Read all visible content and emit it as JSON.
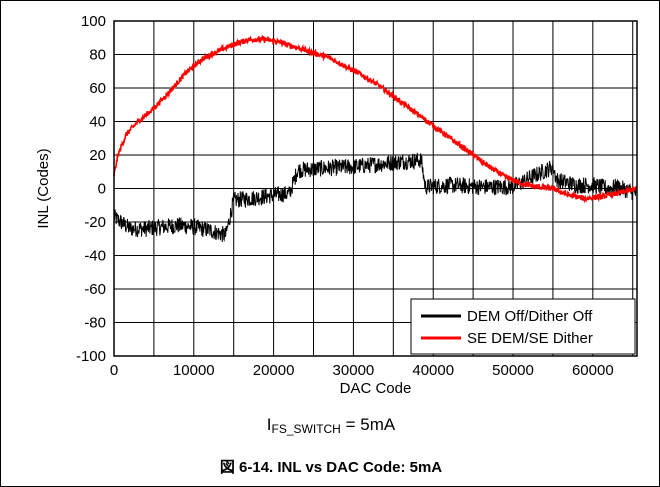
{
  "chart_data": {
    "type": "line",
    "xlabel": "DAC Code",
    "ylabel": "INL (Codes)",
    "xlim": [
      0,
      65535
    ],
    "ylim": [
      -100,
      100
    ],
    "xticks": [
      0,
      10000,
      20000,
      30000,
      40000,
      50000,
      60000
    ],
    "yticks": [
      100,
      80,
      60,
      40,
      20,
      0,
      -20,
      -40,
      -60,
      -80,
      -100
    ],
    "grid": true,
    "legend_position": "bottom-right",
    "series": [
      {
        "name": "DEM Off/Dither Off",
        "color": "#000000",
        "x": [
          0,
          2000,
          4000,
          6000,
          8000,
          10000,
          12000,
          14000,
          15000,
          17000,
          20000,
          22000,
          23000,
          26000,
          30000,
          34000,
          36000,
          38500,
          39000,
          42000,
          46000,
          50000,
          52000,
          55000,
          55500,
          58000,
          60000,
          62000,
          63000,
          65535
        ],
        "y": [
          -17,
          -24,
          -24,
          -23,
          -22,
          -23,
          -25,
          -28,
          -7,
          -6,
          -4,
          -3,
          11,
          12,
          13,
          15,
          16,
          17,
          1,
          2,
          1,
          1,
          6,
          13,
          5,
          2,
          2,
          0,
          1,
          -3
        ]
      },
      {
        "name": "SE DEM/SE Dither",
        "color": "#ff0000",
        "x": [
          0,
          500,
          1500,
          3000,
          5000,
          7000,
          9000,
          11000,
          13000,
          15000,
          17000,
          19000,
          21000,
          23000,
          25000,
          27000,
          29000,
          31000,
          33000,
          35000,
          37000,
          39000,
          41000,
          43000,
          45000,
          47000,
          49000,
          51000,
          53000,
          55000,
          57000,
          59000,
          61000,
          63000,
          65535
        ],
        "y": [
          8,
          20,
          32,
          40,
          48,
          58,
          69,
          77,
          82,
          86,
          89,
          89,
          87,
          84,
          81,
          78,
          73,
          68,
          62,
          55,
          48,
          41,
          34,
          27,
          20,
          13,
          7,
          3,
          1,
          0,
          -4,
          -6,
          -5,
          -3,
          0
        ]
      }
    ]
  },
  "condition": {
    "main": "I",
    "sub": "FS_SWITCH",
    "rest": " = 5mA"
  },
  "caption": "図 6-14. INL vs DAC Code: 5mA"
}
